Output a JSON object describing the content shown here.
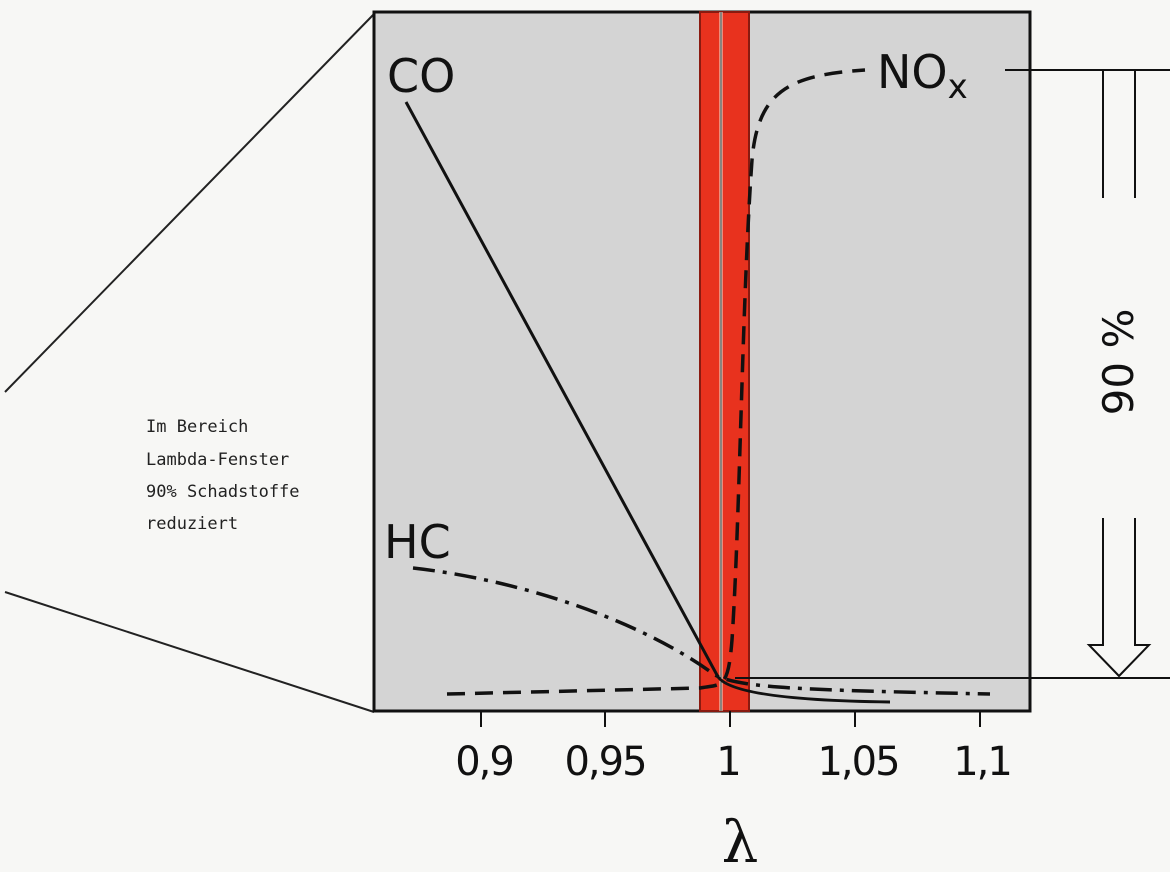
{
  "note_lines": [
    "Im Bereich",
    "Lambda-Fenster",
    "90% Schadstoffe",
    "reduziert"
  ],
  "curves": {
    "co": "CO",
    "hc": "HC",
    "nox": {
      "base": "NO",
      "sub": "x"
    }
  },
  "axis": {
    "symbol": "λ",
    "ticks": [
      "0,9",
      "0,95",
      "1",
      "1,05",
      "1,1"
    ]
  },
  "reduction_label": "90 %",
  "colors": {
    "panel": "#d4d4d4",
    "window": "#e8321e",
    "ink": "#111111"
  }
}
